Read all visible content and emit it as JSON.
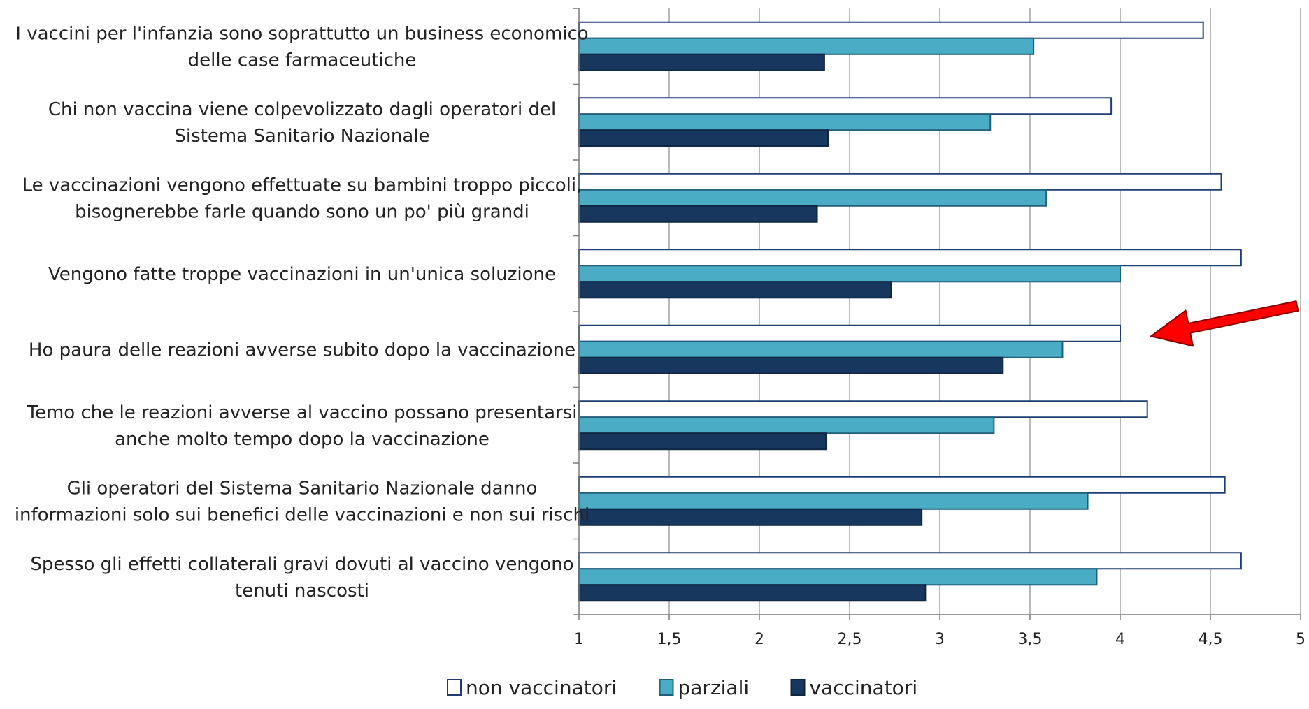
{
  "chart_data": {
    "type": "bar",
    "orientation": "horizontal",
    "categories": [
      [
        "I vaccini per l'infanzia sono soprattutto un business economico",
        "delle case farmaceutiche"
      ],
      [
        "Chi non vaccina viene colpevolizzato dagli operatori del",
        "Sistema Sanitario Nazionale"
      ],
      [
        "Le vaccinazioni vengono effettuate su bambini troppo piccoli,",
        "bisognerebbe farle quando sono un po' più grandi"
      ],
      [
        "Vengono fatte troppe vaccinazioni in un'unica soluzione"
      ],
      [
        "Ho paura delle reazioni avverse subito dopo la vaccinazione"
      ],
      [
        "Temo che le reazioni avverse al vaccino possano presentarsi",
        "anche molto tempo dopo la vaccinazione"
      ],
      [
        "Gli operatori del Sistema Sanitario Nazionale danno",
        "informazioni solo sui benefici delle vaccinazioni e non sui rischi"
      ],
      [
        "Spesso gli effetti collaterali gravi dovuti al vaccino vengono",
        "tenuti nascosti"
      ]
    ],
    "series": [
      {
        "name": "non vaccinatori",
        "color": "#ffffff",
        "stroke": "#1f3f73",
        "values": [
          4.46,
          3.95,
          4.56,
          4.67,
          4.0,
          4.15,
          4.58,
          4.67
        ]
      },
      {
        "name": "parziali",
        "color": "#4bacc6",
        "stroke": "#1f5f7a",
        "values": [
          3.52,
          3.28,
          3.59,
          4.0,
          3.68,
          3.3,
          3.82,
          3.87
        ]
      },
      {
        "name": "vaccinatori",
        "color": "#17375e",
        "stroke": "#0f2540",
        "values": [
          2.36,
          2.38,
          2.32,
          2.73,
          3.35,
          2.37,
          2.9,
          2.92
        ]
      }
    ],
    "xlim": [
      1,
      5
    ],
    "xticks": [
      "1",
      "1,5",
      "2",
      "2,5",
      "3",
      "3,5",
      "4",
      "4,5",
      "5"
    ],
    "xtick_values": [
      1,
      1.5,
      2,
      2.5,
      3,
      3.5,
      4,
      4.5,
      5
    ],
    "grid": true,
    "legend_position": "bottom",
    "annotation": {
      "type": "arrow",
      "color": "#ff0000",
      "points_to_category": 4
    }
  }
}
